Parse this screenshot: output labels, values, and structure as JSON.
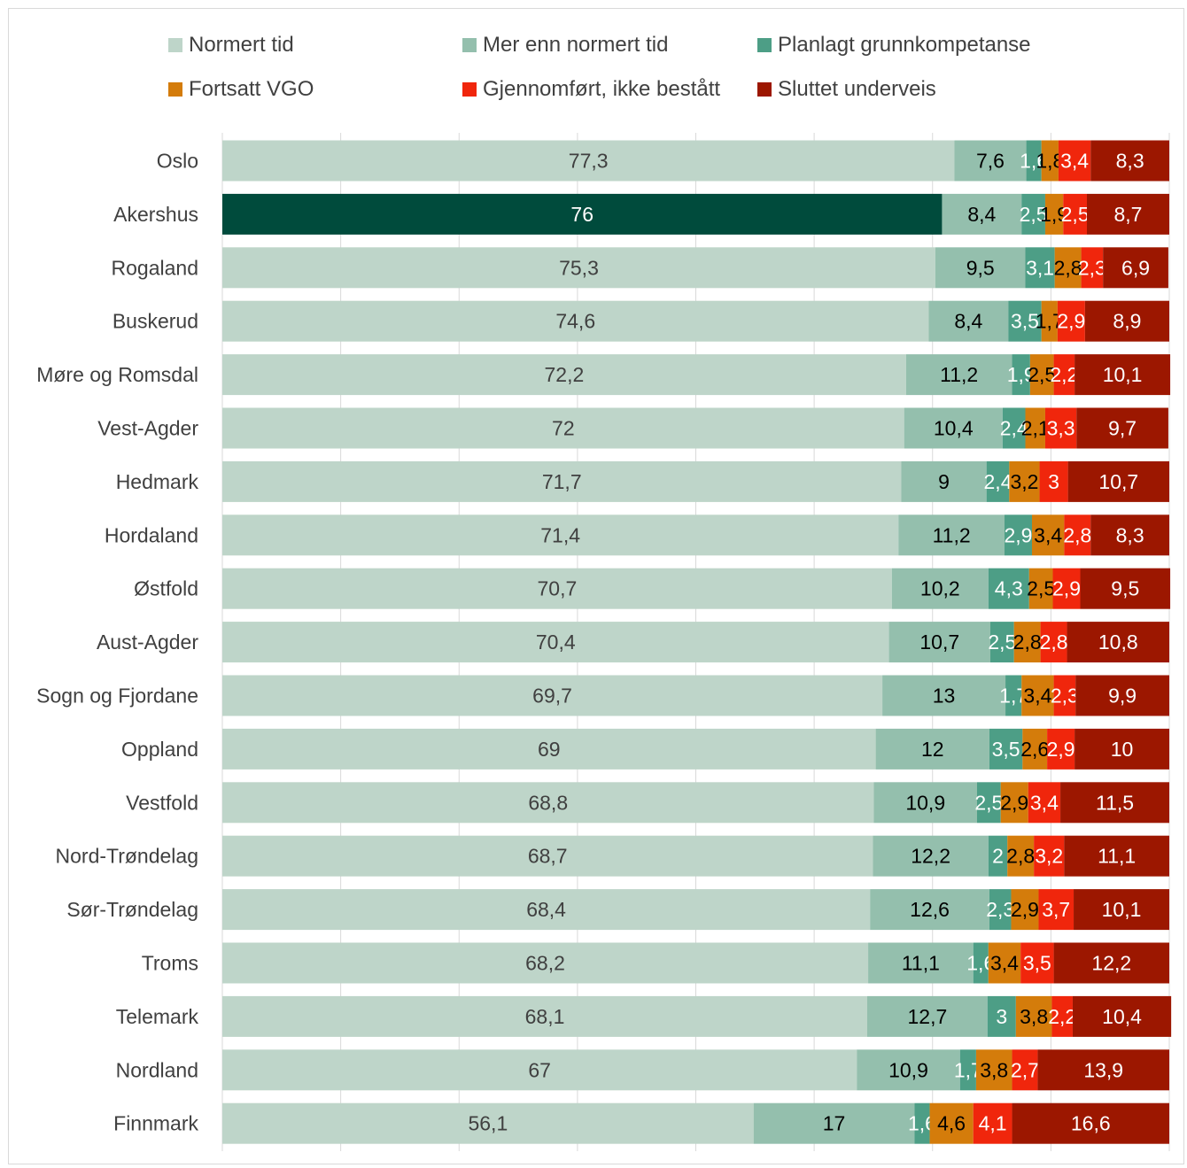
{
  "chart_data": {
    "type": "bar",
    "orientation": "horizontal",
    "stacked": true,
    "xlim": [
      0,
      100
    ],
    "grid": true,
    "legend_position": "top",
    "categories": [
      "Oslo",
      "Akershus",
      "Rogaland",
      "Buskerud",
      "Møre og Romsdal",
      "Vest-Agder",
      "Hedmark",
      "Hordaland",
      "Østfold",
      "Aust-Agder",
      "Sogn og Fjordane",
      "Oppland",
      "Vestfold",
      "Nord-Trøndelag",
      "Sør-Trøndelag",
      "Troms",
      "Telemark",
      "Nordland",
      "Finnmark"
    ],
    "highlighted_category": "Akershus",
    "highlight_color": "#004b3c",
    "series": [
      {
        "name": "Normert tid",
        "color": "#bed5c9",
        "label_color": "#404040",
        "values": [
          77.3,
          76,
          75.3,
          74.6,
          72.2,
          72,
          71.7,
          71.4,
          70.7,
          70.4,
          69.7,
          69,
          68.8,
          68.7,
          68.4,
          68.2,
          68.1,
          67,
          56.1
        ],
        "labels": [
          "77,3",
          "76",
          "75,3",
          "74,6",
          "72,2",
          "72",
          "71,7",
          "71,4",
          "70,7",
          "70,4",
          "69,7",
          "69",
          "68,8",
          "68,7",
          "68,4",
          "68,2",
          "68,1",
          "67",
          "56,1"
        ]
      },
      {
        "name": "Mer enn normert tid",
        "color": "#94bfad",
        "label_color": "#000000",
        "values": [
          7.6,
          8.4,
          9.5,
          8.4,
          11.2,
          10.4,
          9,
          11.2,
          10.2,
          10.7,
          13,
          12,
          10.9,
          12.2,
          12.6,
          11.1,
          12.7,
          10.9,
          17
        ],
        "labels": [
          "7,6",
          "8,4",
          "9,5",
          "8,4",
          "11,2",
          "10,4",
          "9",
          "11,2",
          "10,2",
          "10,7",
          "13",
          "12",
          "10,9",
          "12,2",
          "12,6",
          "11,1",
          "12,7",
          "10,9",
          "17"
        ]
      },
      {
        "name": "Planlagt grunnkompetanse",
        "color": "#4d9e86",
        "label_color": "#ffffff",
        "values": [
          1.6,
          2.5,
          3.1,
          3.5,
          1.9,
          2.4,
          2.4,
          2.9,
          4.3,
          2.5,
          1.7,
          3.5,
          2.5,
          2,
          2.3,
          1.6,
          3,
          1.7,
          1.6
        ],
        "labels": [
          "1,6",
          "2,5",
          "3,1",
          "3,5",
          "1,9",
          "2,4",
          "2,4",
          "2,9",
          "4,3",
          "2,5",
          "1,7",
          "3,5",
          "2,5",
          "2",
          "2,3",
          "1,6",
          "3",
          "1,7",
          "1,6"
        ]
      },
      {
        "name": "Fortsatt VGO",
        "color": "#d47c0b",
        "label_color": "#000000",
        "values": [
          1.8,
          1.9,
          2.8,
          1.7,
          2.5,
          2.1,
          3.2,
          3.4,
          2.5,
          2.8,
          3.4,
          2.6,
          2.9,
          2.8,
          2.9,
          3.4,
          3.8,
          3.8,
          4.6
        ],
        "labels": [
          "1,8",
          "1,9",
          "2,8",
          "1,7",
          "2,5",
          "2,1",
          "3,2",
          "3,4",
          "2,5",
          "2,8",
          "3,4",
          "2,6",
          "2,9",
          "2,8",
          "2,9",
          "3,4",
          "3,8",
          "3,8",
          "4,6"
        ]
      },
      {
        "name": "Gjennomført, ikke bestått",
        "color": "#f0260c",
        "label_color": "#ffffff",
        "values": [
          3.4,
          2.5,
          2.3,
          2.9,
          2.2,
          3.3,
          3,
          2.8,
          2.9,
          2.8,
          2.3,
          2.9,
          3.4,
          3.2,
          3.7,
          3.5,
          2.2,
          2.7,
          4.1
        ],
        "labels": [
          "3,4",
          "2,5",
          "2,3",
          "2,9",
          "2,2",
          "3,3",
          "3",
          "2,8",
          "2,9",
          "2,8",
          "2,3",
          "2,9",
          "3,4",
          "3,2",
          "3,7",
          "3,5",
          "2,2",
          "2,7",
          "4,1"
        ]
      },
      {
        "name": "Sluttet underveis",
        "color": "#9c1700",
        "label_color": "#ffffff",
        "values": [
          8.3,
          8.7,
          6.9,
          8.9,
          10.1,
          9.7,
          10.7,
          8.3,
          9.5,
          10.8,
          9.9,
          10,
          11.5,
          11.1,
          10.1,
          12.2,
          10.4,
          13.9,
          16.6
        ],
        "labels": [
          "8,3",
          "8,7",
          "6,9",
          "8,9",
          "10,1",
          "9,7",
          "10,7",
          "8,3",
          "9,5",
          "10,8",
          "9,9",
          "10",
          "11,5",
          "11,1",
          "10,1",
          "12,2",
          "10,4",
          "13,9",
          "16,6"
        ]
      }
    ]
  }
}
